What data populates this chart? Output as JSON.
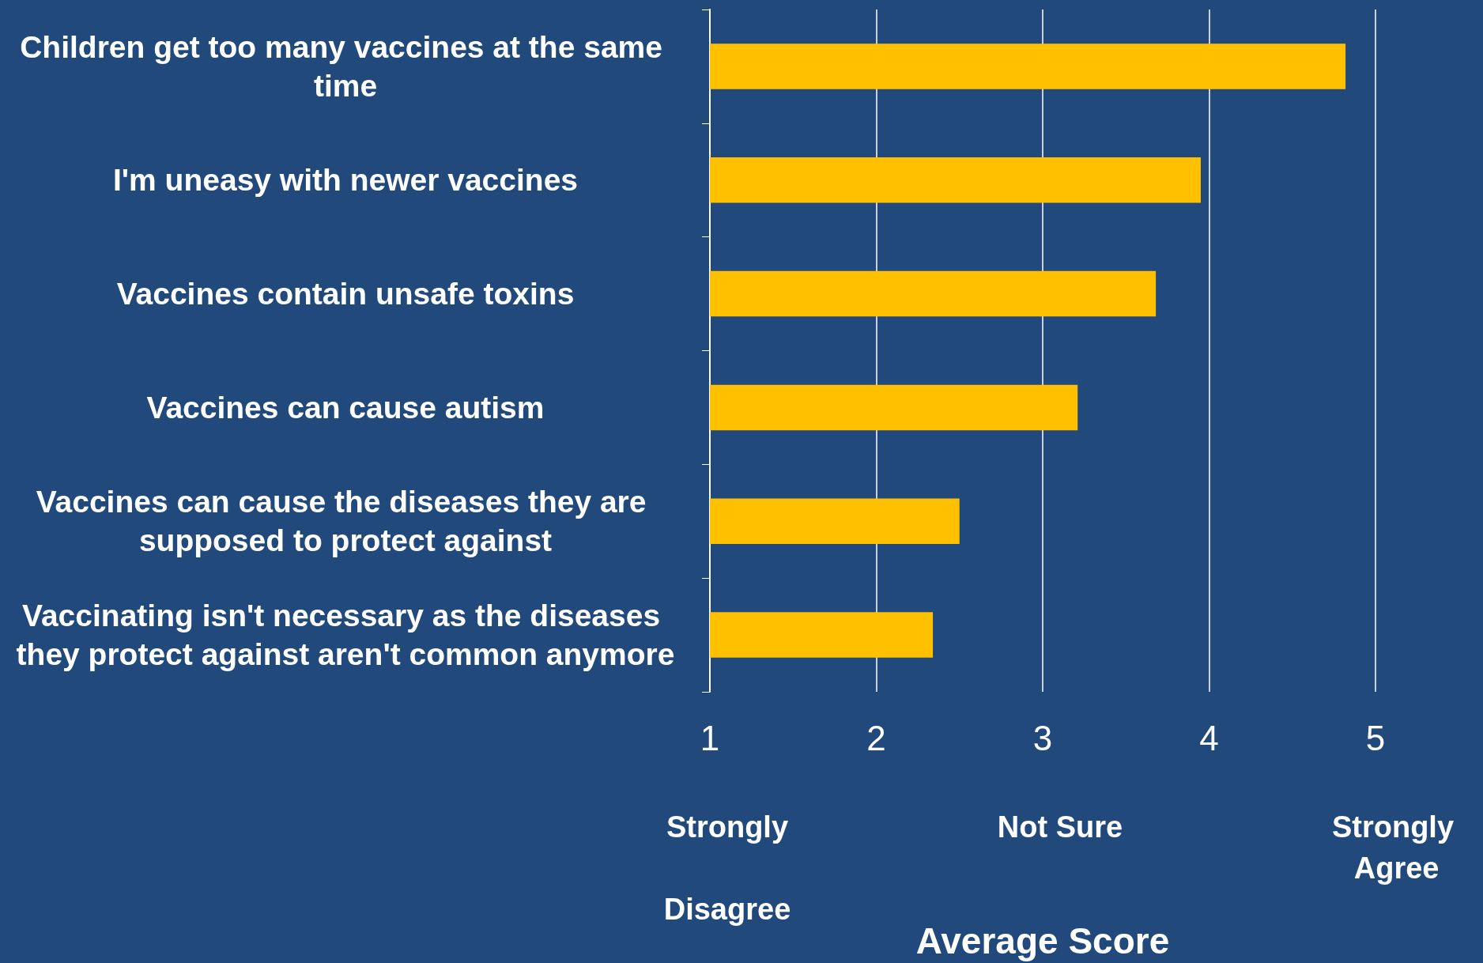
{
  "chart_data": {
    "type": "bar",
    "orientation": "horizontal",
    "xlabel": "Average Score",
    "categories": [
      "Children get too many vaccines at the same time",
      "I'm uneasy with newer vaccines",
      "Vaccines contain unsafe toxins",
      "Vaccines can cause autism",
      "Vaccines can cause the diseases they are supposed to protect against",
      "Vaccinating isn't necessary as the diseases they protect against aren't common anymore"
    ],
    "values": [
      4.82,
      3.95,
      3.68,
      3.21,
      2.5,
      2.34
    ],
    "color": "#ffc000",
    "xlim": [
      1,
      5
    ],
    "xticks": [
      1,
      2,
      3,
      4,
      5
    ],
    "grid": "x",
    "annotations": [
      "Strongly Disagree",
      "Not Sure",
      "Strongly Agree"
    ]
  }
}
